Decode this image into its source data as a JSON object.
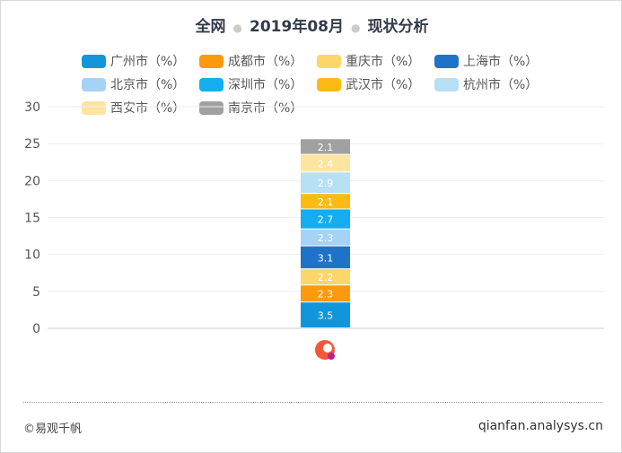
{
  "title": {
    "part1": "全网",
    "part2": "2019年08月",
    "part3": "现状分析"
  },
  "chart_data": {
    "type": "bar",
    "stacked": true,
    "categories": [
      ""
    ],
    "ylim": [
      0,
      30
    ],
    "yticks": [
      0,
      5,
      10,
      15,
      20,
      25,
      30
    ],
    "grid": true,
    "legend_position": "top",
    "series": [
      {
        "name": "广州市（%）",
        "values": [
          3.5
        ],
        "color": "#1296db"
      },
      {
        "name": "成都市（%）",
        "values": [
          2.3
        ],
        "color": "#fb9a0e"
      },
      {
        "name": "重庆市（%）",
        "values": [
          2.2
        ],
        "color": "#fdd66a"
      },
      {
        "name": "上海市（%）",
        "values": [
          3.1
        ],
        "color": "#1e73c8"
      },
      {
        "name": "北京市（%）",
        "values": [
          2.3
        ],
        "color": "#a6d2f5"
      },
      {
        "name": "深圳市（%）",
        "values": [
          2.7
        ],
        "color": "#12aef0"
      },
      {
        "name": "武汉市（%）",
        "values": [
          2.1
        ],
        "color": "#fbbb14"
      },
      {
        "name": "杭州市（%）",
        "values": [
          2.9
        ],
        "color": "#b7e0f5"
      },
      {
        "name": "西安市（%）",
        "values": [
          2.4
        ],
        "color": "#fde4a0"
      },
      {
        "name": "南京市（%）",
        "values": [
          2.1
        ],
        "color": "#a0a0a0"
      }
    ]
  },
  "footer": {
    "copyright": "©易观千帆",
    "site": "qianfan.analysys.cn"
  }
}
